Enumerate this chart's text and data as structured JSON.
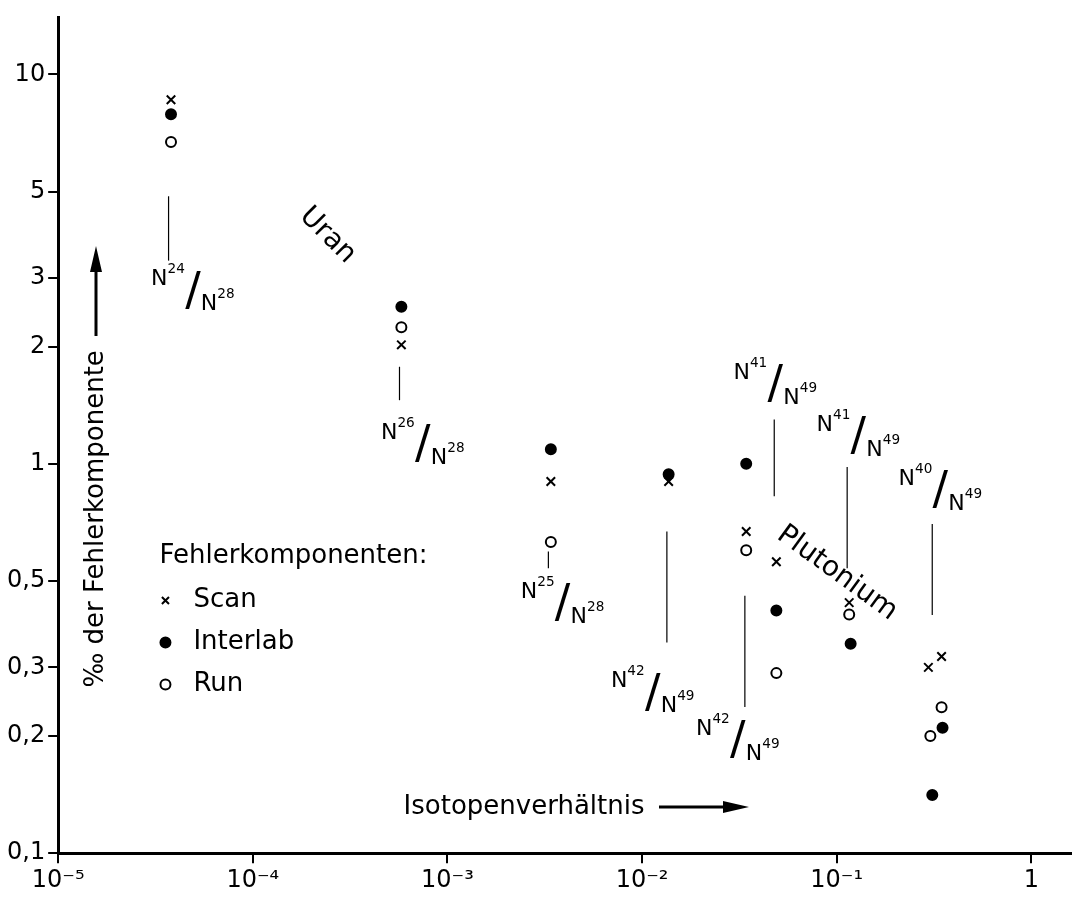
{
  "chart_data": {
    "type": "scatter",
    "xlabel": "Isotopenverhältnis",
    "ylabel": "‰ der Fehlerkomponente",
    "legend_title": "Fehlerkomponenten:",
    "legend": "left",
    "log": "xy",
    "grid": false,
    "xlim": [
      1e-05,
      1.6
    ],
    "ylim": [
      0.1,
      14
    ],
    "xticks": [
      {
        "value": 1e-05,
        "label": "10⁻⁵"
      },
      {
        "value": 0.0001,
        "label": "10⁻⁴"
      },
      {
        "value": 0.001,
        "label": "10⁻³"
      },
      {
        "value": 0.01,
        "label": "10⁻²"
      },
      {
        "value": 0.1,
        "label": "10⁻¹"
      },
      1
    ],
    "yticks": [
      {
        "value": 0.1,
        "label": "0,1"
      },
      {
        "value": 0.2,
        "label": "0,2"
      },
      {
        "value": 0.3,
        "label": "0,3"
      },
      {
        "value": 0.5,
        "label": "0,5"
      },
      1,
      2,
      3,
      5,
      10
    ],
    "series": [
      {
        "name": "Scan",
        "color": "#000000",
        "marker": "cross",
        "x": [
          3.8e-05,
          0.00058,
          0.0034,
          0.0137,
          0.0343,
          0.049,
          0.116,
          0.296,
          0.346
        ],
        "values": [
          8.6,
          2.02,
          0.9,
          0.9,
          0.67,
          0.56,
          0.44,
          0.3,
          0.32
        ]
      },
      {
        "name": "Interlab",
        "color": "#000000",
        "marker": "circle",
        "x": [
          3.8e-05,
          0.00058,
          0.0034,
          0.0137,
          0.0343,
          0.049,
          0.118,
          0.35,
          0.31
        ],
        "values": [
          7.9,
          2.53,
          1.09,
          0.94,
          1.0,
          0.42,
          0.345,
          0.21,
          0.141
        ]
      },
      {
        "name": "Run",
        "color": "#ffffff",
        "marker": "circle",
        "x": [
          3.8e-05,
          0.00058,
          0.0034,
          0.0343,
          0.049,
          0.116,
          0.346,
          0.303
        ],
        "values": [
          6.7,
          2.24,
          0.63,
          0.6,
          0.29,
          0.41,
          0.237,
          0.2
        ]
      }
    ],
    "annotations": [
      "Uran",
      "Plutonium",
      "N$^{24}$/N$^{28}$",
      "N$^{26}$/N$^{28}$",
      "N$^{25}$/N$^{28}$",
      "N$^{42}$/N$^{49}$",
      "N$^{42}$/N$^{49}$",
      "N$^{41}$/N$^{49}$",
      "N$^{41}$/N$^{49}$",
      "N$^{40}$/N$^{49}$"
    ]
  }
}
